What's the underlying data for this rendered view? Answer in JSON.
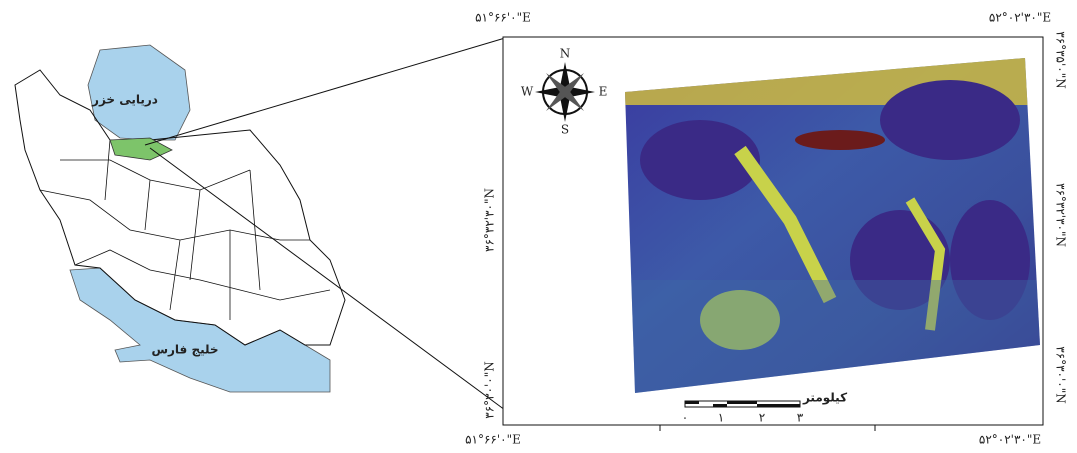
{
  "inset_map": {
    "labels": [
      "دریایی خزر",
      "خلیج فارس"
    ]
  },
  "main_map": {
    "top_labels": [
      "۵۱°۶۶'۰\"E",
      "۵۲°۰۲'۳۰\"E"
    ],
    "bottom_labels": [
      "۵۱°۶۶'۰\"E",
      "۵۲°۰۲'۳۰\"E"
    ],
    "left_labels": [
      "۳۶°۳۲'۳۰\"N",
      "۳۶°۳۰'۰\"N"
    ],
    "right_labels": [
      "۳۶°۳۵'۰\"N",
      "۳۶°۳۲'۳۰\"N",
      "۳۶°۳۰'۰\"N"
    ],
    "compass": {
      "n": "N",
      "e": "E",
      "s": "S",
      "w": "W"
    },
    "scale_bar": {
      "unit": "کیلومتر",
      "ticks": [
        "۰",
        "۱",
        "۲",
        "۳"
      ]
    }
  }
}
